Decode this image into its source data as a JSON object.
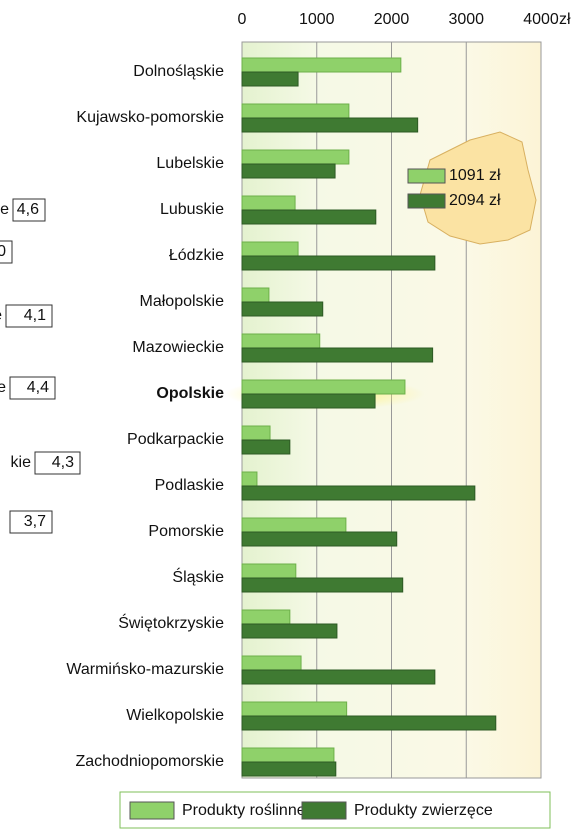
{
  "chart_data": {
    "type": "bar",
    "orientation": "horizontal",
    "categories": [
      "Dolnośląskie",
      "Kujawsko-pomorskie",
      "Lubelskie",
      "Lubuskie",
      "Łódzkie",
      "Małopolskie",
      "Mazowieckie",
      "Opolskie",
      "Podkarpackie",
      "Podlaskie",
      "Pomorskie",
      "Śląskie",
      "Świętokrzyskie",
      "Warmińsko-mazurskie",
      "Wielkopolskie",
      "Zachodniopomorskie"
    ],
    "series": [
      {
        "name": "Produkty roślinne",
        "color": "#8fd16a",
        "values": [
          2125,
          1430,
          1430,
          710,
          750,
          360,
          1040,
          2180,
          375,
          200,
          1390,
          720,
          640,
          790,
          1400,
          1230
        ]
      },
      {
        "name": "Produkty zwierzęce",
        "color": "#3f7a32",
        "values": [
          750,
          2350,
          1245,
          1790,
          2580,
          1080,
          2550,
          1780,
          640,
          3115,
          2070,
          2150,
          1270,
          2580,
          3395,
          1255
        ]
      }
    ],
    "highlight_index": 7,
    "xlim": [
      0,
      4000
    ],
    "xticks": [
      0,
      1000,
      2000,
      3000,
      4000
    ],
    "x_unit": "zł",
    "grid": true,
    "inset_legend": [
      "1091 zł",
      "2094 zł"
    ]
  },
  "left_panel": [
    {
      "label": "e",
      "value": "4,6"
    },
    {
      "value": "0"
    },
    {
      "label": "e",
      "value": "4,1"
    },
    {
      "label": "e",
      "value": "4,4"
    },
    {
      "label": "kie",
      "value": "4,3"
    },
    {
      "value": "3,7"
    }
  ]
}
